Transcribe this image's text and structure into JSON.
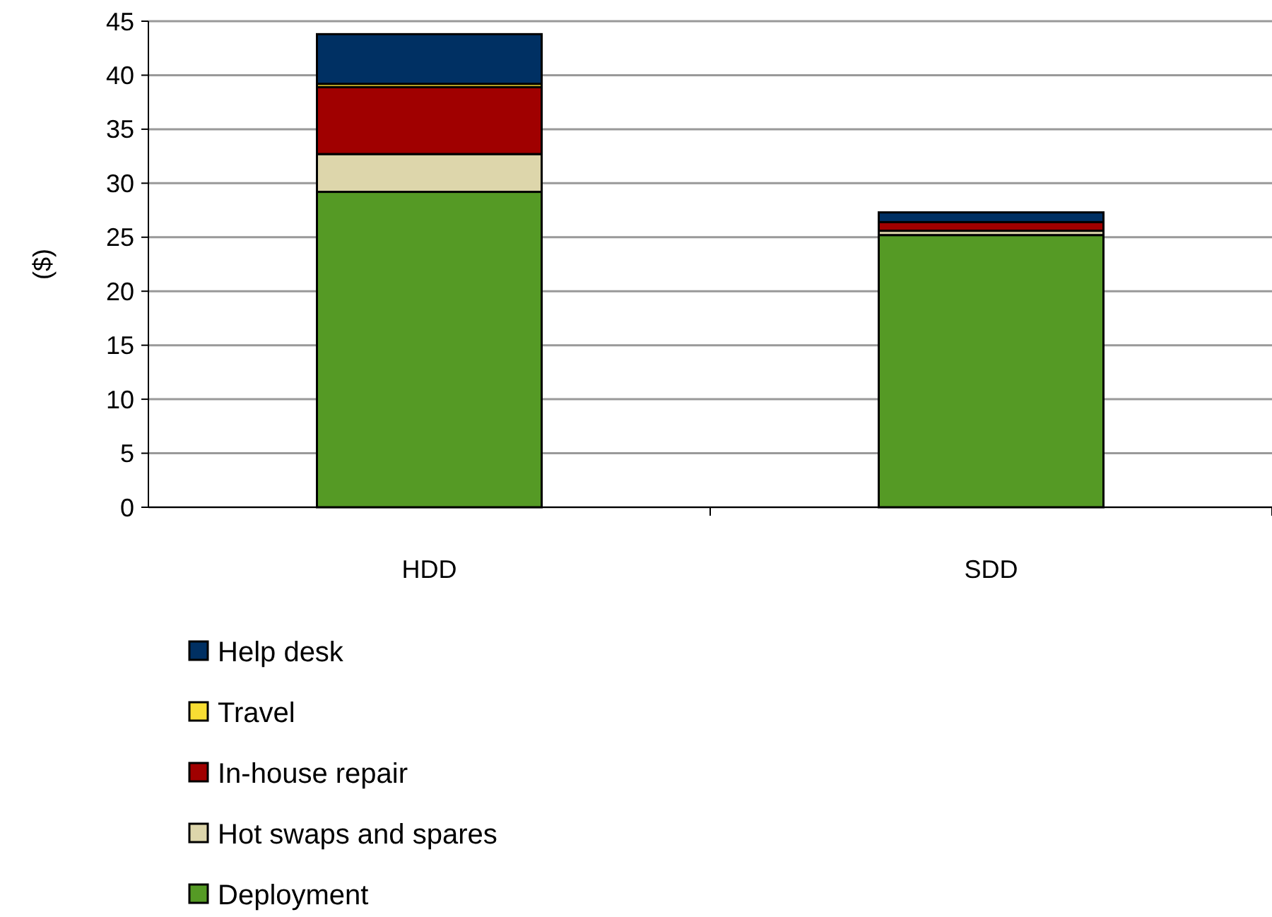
{
  "chart_data": {
    "type": "bar",
    "stacked": true,
    "ylabel": "($)",
    "categories": [
      "HDD",
      "SDD"
    ],
    "series": [
      {
        "name": "Deployment",
        "color": "#559a25",
        "values": [
          29.2,
          25.2
        ]
      },
      {
        "name": "Hot swaps and spares",
        "color": "#ddd6ab",
        "values": [
          3.5,
          0.4
        ]
      },
      {
        "name": "In-house repair",
        "color": "#a00000",
        "values": [
          6.2,
          0.8
        ]
      },
      {
        "name": "Travel",
        "color": "#f7dd33",
        "values": [
          0.3,
          null
        ]
      },
      {
        "name": "Help desk",
        "color": "#003063",
        "values": [
          4.6,
          0.9
        ]
      }
    ],
    "ylim": [
      0,
      45
    ],
    "yticks": [
      0,
      5,
      10,
      15,
      20,
      25,
      30,
      35,
      40,
      45
    ],
    "grid": "y",
    "legend": "bottom"
  }
}
